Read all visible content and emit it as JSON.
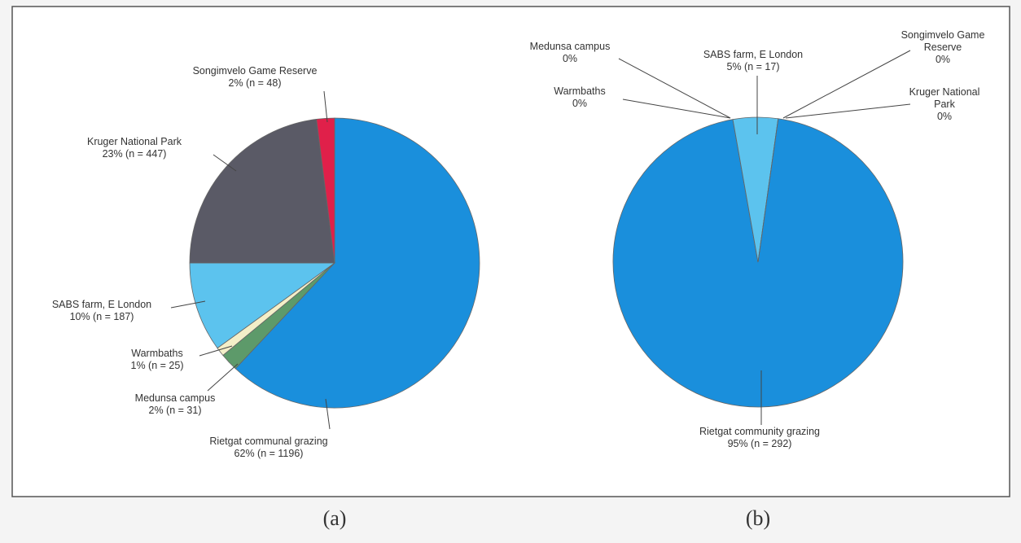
{
  "chart_data": [
    {
      "type": "pie",
      "caption": "(a)",
      "categories": [
        "Rietgat communal grazing",
        "Medunsa campus",
        "Warmbaths",
        "SABS farm, E London",
        "Kruger National Park",
        "Songimvelo Game Reserve"
      ],
      "values": [
        62,
        2,
        1,
        10,
        23,
        2
      ],
      "value_labels": [
        "62% (n = 1196)",
        "2% (n = 31)",
        "1% (n = 25)",
        "10% (n = 187)",
        "23% (n = 447)",
        "2% (n = 48)"
      ],
      "colors": [
        "#1a8fdc",
        "#5d9a6a",
        "#f3efc8",
        "#5cc3ee",
        "#5a5a66",
        "#e0204a"
      ]
    },
    {
      "type": "pie",
      "caption": "(b)",
      "categories": [
        "Rietgat community grazing",
        "Warmbaths",
        "Medunsa campus",
        "SABS farm, E London",
        "Songimvelo Game Reserve",
        "Kruger National Park"
      ],
      "values": [
        95,
        0,
        0,
        5,
        0,
        0
      ],
      "value_labels": [
        "95% (n = 292)",
        "0%",
        "0%",
        "5% (n = 17)",
        "0%",
        "0%"
      ],
      "colors": [
        "#1a8fdc",
        "#f3efc8",
        "#5d9a6a",
        "#5cc3ee",
        "#e0204a",
        "#5a5a66"
      ]
    }
  ]
}
